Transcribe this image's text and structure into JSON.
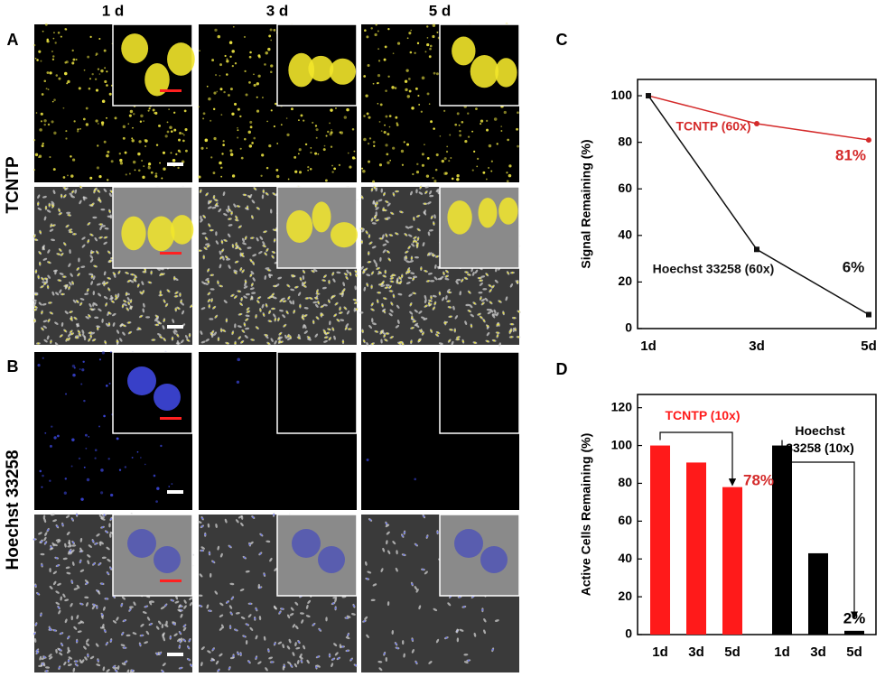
{
  "figure": {
    "column_labels": [
      "1 d",
      "3 d",
      "5 d"
    ],
    "panel_labels": [
      "A",
      "B",
      "C",
      "D"
    ],
    "row_labels": [
      "TCNTP",
      "Hoechst 33258"
    ]
  },
  "chart_data": [
    {
      "type": "line",
      "ylabel": "Signal Remaining (%)",
      "categories": [
        "1d",
        "3d",
        "5d"
      ],
      "ylim": [
        0,
        107
      ],
      "yticks": [
        0,
        20,
        40,
        60,
        80,
        100
      ],
      "series": [
        {
          "name": "TCNTP (60x)",
          "color": "#d42a2a",
          "values": [
            100,
            88,
            81
          ]
        },
        {
          "name": "Hoechst 33258 (60x)",
          "color": "#111111",
          "values": [
            100,
            34,
            6
          ]
        }
      ],
      "annotations": [
        "81%",
        "6%"
      ]
    },
    {
      "type": "bar",
      "ylabel": "Active Cells Remaining (%)",
      "categories": [
        "1d",
        "3d",
        "5d",
        "1d",
        "3d",
        "5d"
      ],
      "ylim": [
        0,
        127
      ],
      "yticks": [
        0,
        20,
        40,
        60,
        80,
        100,
        120
      ],
      "series": [
        {
          "name": "TCNTP (10x)",
          "color": "#ff1a1a",
          "values": [
            100,
            91,
            78,
            null,
            null,
            null
          ]
        },
        {
          "name": "Hoechst 33258 (10x)",
          "color": "#000000",
          "values": [
            null,
            null,
            null,
            100,
            43,
            2
          ]
        }
      ],
      "annotations": [
        "78%",
        "2%"
      ]
    }
  ]
}
